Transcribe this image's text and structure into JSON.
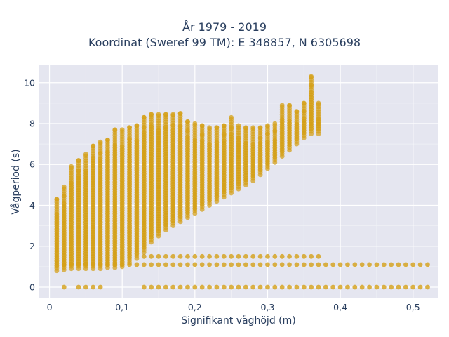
{
  "chart_data": {
    "type": "scatter",
    "title_line1": "År 1979 - 2019",
    "title_line2": "Koordinat (Sweref 99 TM): E 348857, N 6305698",
    "xlabel": "Signifikant våghöjd (m)",
    "ylabel": "Vågperiod (s)",
    "xlim": [
      -0.015,
      0.535
    ],
    "ylim": [
      -0.55,
      10.85
    ],
    "x_ticks": [
      {
        "value": 0,
        "label": "0"
      },
      {
        "value": 0.1,
        "label": "0,1"
      },
      {
        "value": 0.2,
        "label": "0,2"
      },
      {
        "value": 0.3,
        "label": "0,3"
      },
      {
        "value": 0.4,
        "label": "0,4"
      },
      {
        "value": 0.5,
        "label": "0,5"
      }
    ],
    "y_ticks": [
      {
        "value": 0,
        "label": "0"
      },
      {
        "value": 2,
        "label": "2"
      },
      {
        "value": 4,
        "label": "4"
      },
      {
        "value": 6,
        "label": "6"
      },
      {
        "value": 8,
        "label": "8"
      },
      {
        "value": 10,
        "label": "10"
      }
    ],
    "grid": true,
    "marker_color": "#d4a017",
    "plot_background": "#e5e6f0",
    "series": [
      {
        "columns": [
          [
            0.01,
            0.8,
            4.3
          ],
          [
            0.02,
            0.85,
            4.9
          ],
          [
            0.03,
            0.9,
            5.9
          ],
          [
            0.04,
            0.9,
            6.2
          ],
          [
            0.05,
            0.9,
            6.5
          ],
          [
            0.06,
            0.9,
            6.9
          ],
          [
            0.07,
            0.9,
            7.1
          ],
          [
            0.08,
            0.95,
            7.2
          ],
          [
            0.09,
            0.95,
            7.7
          ],
          [
            0.1,
            1.0,
            7.7
          ],
          [
            0.11,
            1.2,
            7.8
          ],
          [
            0.12,
            1.4,
            7.9
          ],
          [
            0.13,
            1.7,
            8.3
          ],
          [
            0.14,
            2.2,
            8.45
          ],
          [
            0.15,
            2.5,
            8.45
          ],
          [
            0.16,
            2.8,
            8.45
          ],
          [
            0.17,
            3.0,
            8.45
          ],
          [
            0.18,
            3.2,
            8.5
          ],
          [
            0.19,
            3.4,
            8.1
          ],
          [
            0.2,
            3.6,
            8.0
          ],
          [
            0.21,
            3.8,
            7.9
          ],
          [
            0.22,
            4.0,
            7.8
          ],
          [
            0.23,
            4.2,
            7.8
          ],
          [
            0.24,
            4.4,
            7.9
          ],
          [
            0.25,
            4.6,
            8.3
          ],
          [
            0.26,
            4.8,
            7.9
          ],
          [
            0.27,
            5.0,
            7.8
          ],
          [
            0.28,
            5.2,
            7.8
          ],
          [
            0.29,
            5.5,
            7.8
          ],
          [
            0.3,
            5.8,
            7.9
          ],
          [
            0.31,
            6.1,
            8.0
          ],
          [
            0.32,
            6.4,
            8.9
          ],
          [
            0.33,
            6.7,
            8.9
          ],
          [
            0.34,
            7.0,
            8.6
          ],
          [
            0.35,
            7.3,
            9.0
          ],
          [
            0.36,
            7.5,
            10.3
          ],
          [
            0.37,
            7.5,
            9.0
          ]
        ],
        "band_1_1": {
          "x_from": 0.02,
          "x_to": 0.52,
          "step": 0.01,
          "y": 1.1
        },
        "band_1_5": {
          "x_from": 0.13,
          "x_to": 0.37,
          "step": 0.01,
          "y": 1.5
        },
        "band_0": {
          "x": [
            0.02,
            0.04,
            0.05,
            0.06,
            0.07
          ],
          "x_from": 0.13,
          "x_to": 0.52,
          "step": 0.01,
          "y": 0
        }
      }
    ]
  }
}
